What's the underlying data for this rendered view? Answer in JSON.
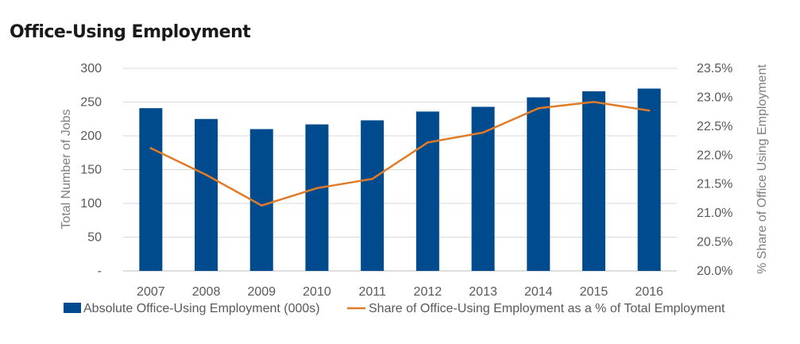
{
  "chart_data": {
    "type": "bar",
    "title": "Office-Using Employment",
    "categories": [
      "2007",
      "2008",
      "2009",
      "2010",
      "2011",
      "2012",
      "2013",
      "2014",
      "2015",
      "2016"
    ],
    "series": [
      {
        "name": "Absolute Office-Using Employment (000s)",
        "type": "bar",
        "axis": "left",
        "color": "#004b8d",
        "values": [
          241,
          225,
          210,
          217,
          223,
          236,
          243,
          257,
          266,
          270
        ]
      },
      {
        "name": "Share of Office-Using Employment as a % of Total Employment",
        "type": "line",
        "axis": "right",
        "color": "#e07b28",
        "values": [
          22.12,
          21.66,
          21.13,
          21.43,
          21.59,
          22.22,
          22.39,
          22.81,
          22.92,
          22.77
        ]
      }
    ],
    "ylabel": "Total Number of Jobs",
    "ylim": [
      0,
      300
    ],
    "yticks": [
      "-",
      "50",
      "100",
      "150",
      "200",
      "250",
      "300"
    ],
    "y2label": "% Share of Office Using Employment",
    "y2lim": [
      20.0,
      23.5
    ],
    "y2ticks": [
      "20.0%",
      "20.5%",
      "21.0%",
      "21.5%",
      "22.0%",
      "22.5%",
      "23.0%",
      "23.5%"
    ],
    "grid": true,
    "grid_color": "#d9d9d9",
    "legend_position": "bottom"
  }
}
